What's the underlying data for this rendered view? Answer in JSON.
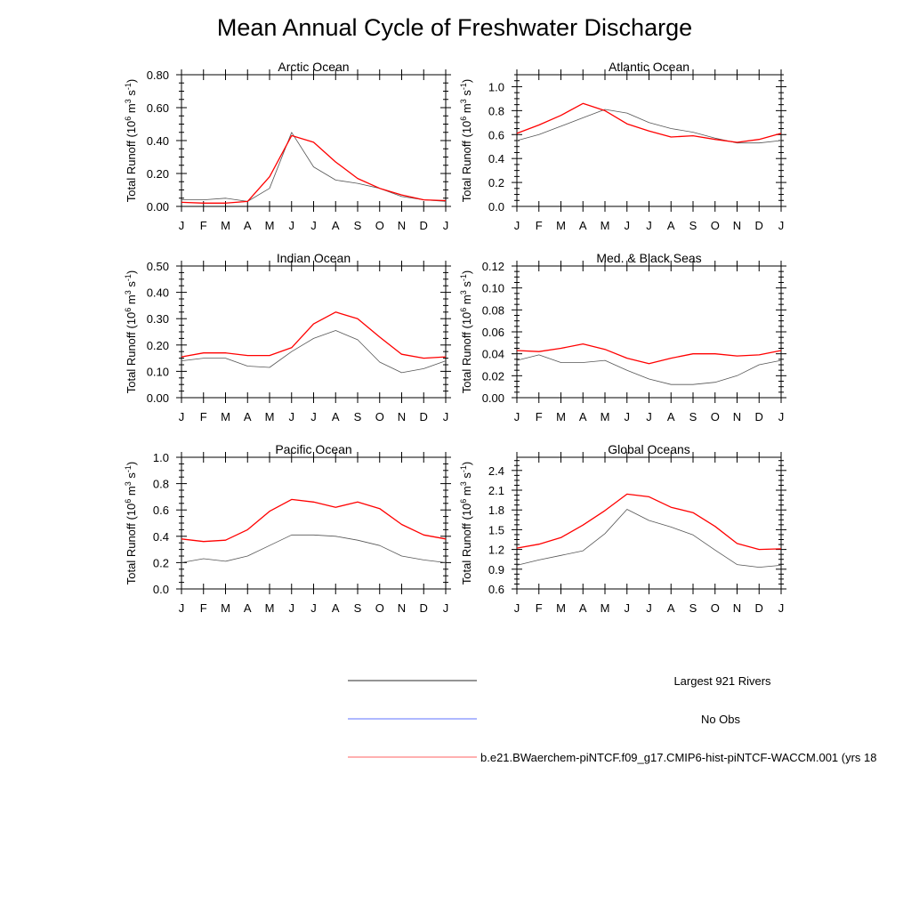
{
  "figure": {
    "title": "Mean Annual Cycle of Freshwater Discharge"
  },
  "legend": {
    "entries": [
      {
        "label": "Largest 921 Rivers",
        "color": "#555555"
      },
      {
        "label": "No Obs",
        "color": "#7f8fff"
      },
      {
        "label": "b.e21.BWaerchem-piNTCF.f09_g17.CMIP6-hist-piNTCF-WACCM.001 (yrs 18",
        "color": "#ff8080"
      }
    ]
  },
  "colors": {
    "rivers": "#555555",
    "model": "#ff0000",
    "axis": "#000000"
  },
  "chart_data": [
    {
      "type": "line",
      "title": "Arctic Ocean",
      "ylabel_parts": {
        "base": "Total Runoff (10",
        "exp1": "6",
        "mid": " m",
        "exp2": "3",
        "mid2": " s",
        "exp3": "-1",
        "end": ")"
      },
      "categories": [
        "J",
        "F",
        "M",
        "A",
        "M",
        "J",
        "J",
        "A",
        "S",
        "O",
        "N",
        "D",
        "J"
      ],
      "ylim": [
        0,
        0.8
      ],
      "yticks": [
        0,
        0.2,
        0.4,
        0.6,
        0.8
      ],
      "yticklabels": [
        "0.00",
        "0.20",
        "0.40",
        "0.60",
        "0.80"
      ],
      "series": [
        {
          "name": "Largest 921 Rivers",
          "values": [
            0.04,
            0.04,
            0.05,
            0.03,
            0.11,
            0.45,
            0.24,
            0.16,
            0.14,
            0.11,
            0.06,
            0.04,
            0.03
          ]
        },
        {
          "name": "b.e21.BWaerchem-piNTCF.f09_g17.CMIP6-hist-piNTCF-WACCM.001 (yrs 18",
          "values": [
            0.025,
            0.02,
            0.02,
            0.03,
            0.18,
            0.43,
            0.39,
            0.27,
            0.17,
            0.11,
            0.07,
            0.04,
            0.035
          ]
        }
      ]
    },
    {
      "type": "line",
      "title": "Atlantic Ocean",
      "ylabel_parts": {
        "base": "Total Runoff (10",
        "exp1": "6",
        "mid": " m",
        "exp2": "3",
        "mid2": " s",
        "exp3": "-1",
        "end": ")"
      },
      "categories": [
        "J",
        "F",
        "M",
        "A",
        "M",
        "J",
        "J",
        "A",
        "S",
        "O",
        "N",
        "D",
        "J"
      ],
      "ylim": [
        0,
        1.1
      ],
      "yticks": [
        0,
        0.2,
        0.4,
        0.6,
        0.8,
        1.0
      ],
      "yticklabels": [
        "0.0",
        "0.2",
        "0.4",
        "0.6",
        "0.8",
        "1.0"
      ],
      "series": [
        {
          "name": "Largest 921 Rivers",
          "values": [
            0.55,
            0.6,
            0.67,
            0.74,
            0.81,
            0.78,
            0.7,
            0.65,
            0.62,
            0.57,
            0.53,
            0.53,
            0.55
          ]
        },
        {
          "name": "b.e21.BWaerchem-piNTCF.f09_g17.CMIP6-hist-piNTCF-WACCM.001 (yrs 18",
          "values": [
            0.61,
            0.68,
            0.76,
            0.86,
            0.8,
            0.69,
            0.63,
            0.58,
            0.59,
            0.56,
            0.535,
            0.56,
            0.61
          ]
        }
      ]
    },
    {
      "type": "line",
      "title": "Indian Ocean",
      "ylabel_parts": {
        "base": "Total Runoff (10",
        "exp1": "6",
        "mid": " m",
        "exp2": "3",
        "mid2": " s",
        "exp3": "-1",
        "end": ")"
      },
      "categories": [
        "J",
        "F",
        "M",
        "A",
        "M",
        "J",
        "J",
        "A",
        "S",
        "O",
        "N",
        "D",
        "J"
      ],
      "ylim": [
        0,
        0.5
      ],
      "yticks": [
        0,
        0.1,
        0.2,
        0.3,
        0.4,
        0.5
      ],
      "yticklabels": [
        "0.00",
        "0.10",
        "0.20",
        "0.30",
        "0.40",
        "0.50"
      ],
      "series": [
        {
          "name": "Largest 921 Rivers",
          "values": [
            0.14,
            0.15,
            0.15,
            0.12,
            0.115,
            0.175,
            0.225,
            0.255,
            0.22,
            0.135,
            0.095,
            0.11,
            0.14
          ]
        },
        {
          "name": "b.e21.BWaerchem-piNTCF.f09_g17.CMIP6-hist-piNTCF-WACCM.001 (yrs 18",
          "values": [
            0.155,
            0.17,
            0.17,
            0.16,
            0.16,
            0.19,
            0.28,
            0.325,
            0.3,
            0.23,
            0.165,
            0.15,
            0.155
          ]
        }
      ]
    },
    {
      "type": "line",
      "title": "Med. & Black Seas",
      "ylabel_parts": {
        "base": "Total Runoff (10",
        "exp1": "6",
        "mid": " m",
        "exp2": "3",
        "mid2": " s",
        "exp3": "-1",
        "end": ")"
      },
      "categories": [
        "J",
        "F",
        "M",
        "A",
        "M",
        "J",
        "J",
        "A",
        "S",
        "O",
        "N",
        "D",
        "J"
      ],
      "ylim": [
        0,
        0.12
      ],
      "yticks": [
        0,
        0.02,
        0.04,
        0.06,
        0.08,
        0.1,
        0.12
      ],
      "yticklabels": [
        "0.00",
        "0.02",
        "0.04",
        "0.06",
        "0.08",
        "0.10",
        "0.12"
      ],
      "series": [
        {
          "name": "Largest 921 Rivers",
          "values": [
            0.034,
            0.039,
            0.032,
            0.032,
            0.034,
            0.025,
            0.017,
            0.012,
            0.012,
            0.014,
            0.02,
            0.03,
            0.034
          ]
        },
        {
          "name": "b.e21.BWaerchem-piNTCF.f09_g17.CMIP6-hist-piNTCF-WACCM.001 (yrs 18",
          "values": [
            0.043,
            0.042,
            0.045,
            0.049,
            0.044,
            0.036,
            0.031,
            0.036,
            0.04,
            0.04,
            0.038,
            0.039,
            0.043
          ]
        }
      ]
    },
    {
      "type": "line",
      "title": "Pacific Ocean",
      "ylabel_parts": {
        "base": "Total Runoff (10",
        "exp1": "6",
        "mid": " m",
        "exp2": "3",
        "mid2": " s",
        "exp3": "-1",
        "end": ")"
      },
      "categories": [
        "J",
        "F",
        "M",
        "A",
        "M",
        "J",
        "J",
        "A",
        "S",
        "O",
        "N",
        "D",
        "J"
      ],
      "ylim": [
        0,
        1.0
      ],
      "yticks": [
        0,
        0.2,
        0.4,
        0.6,
        0.8,
        1.0
      ],
      "yticklabels": [
        "0.0",
        "0.2",
        "0.4",
        "0.6",
        "0.8",
        "1.0"
      ],
      "series": [
        {
          "name": "Largest 921 Rivers",
          "values": [
            0.2,
            0.23,
            0.21,
            0.25,
            0.33,
            0.41,
            0.41,
            0.4,
            0.37,
            0.33,
            0.25,
            0.22,
            0.2
          ]
        },
        {
          "name": "b.e21.BWaerchem-piNTCF.f09_g17.CMIP6-hist-piNTCF-WACCM.001 (yrs 18",
          "values": [
            0.38,
            0.36,
            0.37,
            0.45,
            0.59,
            0.68,
            0.66,
            0.62,
            0.66,
            0.61,
            0.49,
            0.41,
            0.38
          ]
        }
      ]
    },
    {
      "type": "line",
      "title": "Global Oceans",
      "ylabel_parts": {
        "base": "Total Runoff (10",
        "exp1": "6",
        "mid": " m",
        "exp2": "3",
        "mid2": " s",
        "exp3": "-1",
        "end": ")"
      },
      "categories": [
        "J",
        "F",
        "M",
        "A",
        "M",
        "J",
        "J",
        "A",
        "S",
        "O",
        "N",
        "D",
        "J"
      ],
      "ylim": [
        0.6,
        2.6
      ],
      "yticks": [
        0.6,
        0.9,
        1.2,
        1.5,
        1.8,
        2.1,
        2.4
      ],
      "yticklabels": [
        "0.6",
        "0.9",
        "1.2",
        "1.5",
        "1.8",
        "2.1",
        "2.4"
      ],
      "series": [
        {
          "name": "Largest 921 Rivers",
          "values": [
            0.96,
            1.04,
            1.11,
            1.18,
            1.44,
            1.81,
            1.64,
            1.54,
            1.42,
            1.19,
            0.97,
            0.93,
            0.96
          ]
        },
        {
          "name": "b.e21.BWaerchem-piNTCF.f09_g17.CMIP6-hist-piNTCF-WACCM.001 (yrs 18",
          "values": [
            1.22,
            1.28,
            1.38,
            1.57,
            1.79,
            2.04,
            2.0,
            1.84,
            1.76,
            1.55,
            1.29,
            1.2,
            1.21
          ]
        }
      ]
    }
  ]
}
